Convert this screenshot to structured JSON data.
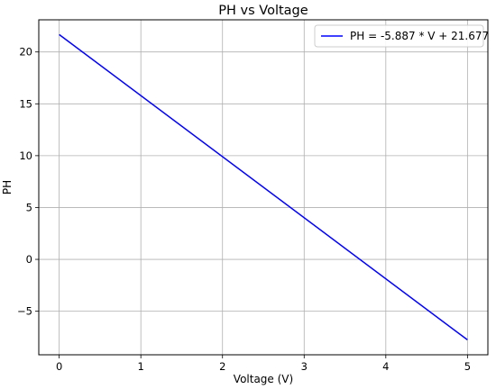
{
  "chart_data": {
    "type": "line",
    "title": "PH vs Voltage",
    "xlabel": "Voltage (V)",
    "ylabel": "PH",
    "xlim": [
      -0.25,
      5.25
    ],
    "ylim": [
      -9.2,
      23.1
    ],
    "xticks": [
      0,
      1,
      2,
      3,
      4,
      5
    ],
    "xtick_labels": [
      "0",
      "1",
      "2",
      "3",
      "4",
      "5"
    ],
    "yticks": [
      -5,
      0,
      5,
      10,
      15,
      20
    ],
    "ytick_labels": [
      "−5",
      "0",
      "5",
      "10",
      "15",
      "20"
    ],
    "grid": true,
    "legend_position": "top-right",
    "series": [
      {
        "name": "PH = -5.887 * V + 21.677",
        "color": "#0000ff",
        "x": [
          0,
          5
        ],
        "y": [
          21.677,
          -7.758
        ]
      }
    ]
  }
}
